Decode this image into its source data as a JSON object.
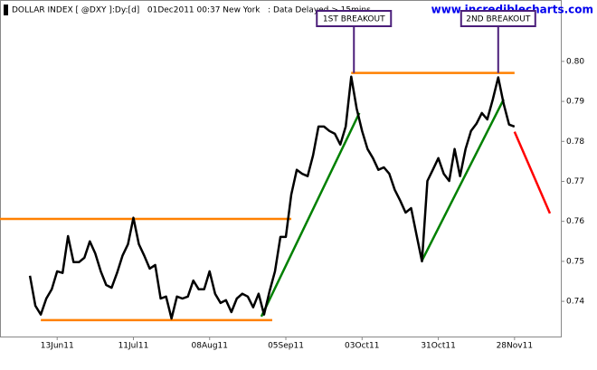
{
  "chart_data": {
    "type": "line",
    "title": "DOLLAR INDEX [ @DXY ]:Dy:[d]   01Dec2011 00:37 New York   : Data Delayed > 15mins",
    "source": "www.incrediblecharts.com",
    "x": [
      "2011-06-03",
      "2011-06-05",
      "2011-06-07",
      "2011-06-09",
      "2011-06-11",
      "2011-06-13",
      "2011-06-15",
      "2011-06-17",
      "2011-06-19",
      "2011-06-21",
      "2011-06-23",
      "2011-06-25",
      "2011-06-27",
      "2011-06-29",
      "2011-07-01",
      "2011-07-03",
      "2011-07-05",
      "2011-07-07",
      "2011-07-09",
      "2011-07-11",
      "2011-07-13",
      "2011-07-15",
      "2011-07-17",
      "2011-07-19",
      "2011-07-21",
      "2011-07-23",
      "2011-07-25",
      "2011-07-27",
      "2011-07-29",
      "2011-07-31",
      "2011-08-02",
      "2011-08-04",
      "2011-08-06",
      "2011-08-08",
      "2011-08-10",
      "2011-08-12",
      "2011-08-14",
      "2011-08-16",
      "2011-08-18",
      "2011-08-20",
      "2011-08-22",
      "2011-08-24",
      "2011-08-26",
      "2011-08-28",
      "2011-08-30",
      "2011-09-01",
      "2011-09-03",
      "2011-09-05",
      "2011-09-07",
      "2011-09-09",
      "2011-09-11",
      "2011-09-13",
      "2011-09-15",
      "2011-09-17",
      "2011-09-19",
      "2011-09-21",
      "2011-09-23",
      "2011-09-25",
      "2011-09-27",
      "2011-09-29",
      "2011-10-01",
      "2011-10-03",
      "2011-10-05",
      "2011-10-07",
      "2011-10-09",
      "2011-10-11",
      "2011-10-13",
      "2011-10-15",
      "2011-10-17",
      "2011-10-19",
      "2011-10-21",
      "2011-10-23",
      "2011-10-25",
      "2011-10-27",
      "2011-10-29",
      "2011-10-31",
      "2011-11-02",
      "2011-11-04",
      "2011-11-06",
      "2011-11-08",
      "2011-11-10",
      "2011-11-12",
      "2011-11-14",
      "2011-11-16",
      "2011-11-18",
      "2011-11-20",
      "2011-11-22",
      "2011-11-24",
      "2011-11-26",
      "2011-11-28"
    ],
    "series": [
      {
        "color": "#000000",
        "values": [
          0.7464,
          0.7389,
          0.7367,
          0.7407,
          0.743,
          0.7475,
          0.7471,
          0.7563,
          0.7498,
          0.7498,
          0.7509,
          0.755,
          0.752,
          0.7475,
          0.7441,
          0.7434,
          0.7471,
          0.7514,
          0.7543,
          0.7609,
          0.7543,
          0.7514,
          0.7482,
          0.7491,
          0.7407,
          0.7412,
          0.7357,
          0.7412,
          0.7407,
          0.7412,
          0.7452,
          0.743,
          0.743,
          0.7475,
          0.7419,
          0.7396,
          0.7403,
          0.7373,
          0.7407,
          0.7419,
          0.7412,
          0.7385,
          0.7419,
          0.7367,
          0.7425,
          0.7475,
          0.7561,
          0.7561,
          0.7667,
          0.7729,
          0.7719,
          0.7713,
          0.7765,
          0.7837,
          0.7837,
          0.7826,
          0.7819,
          0.7792,
          0.7837,
          0.7962,
          0.7882,
          0.7826,
          0.7781,
          0.7758,
          0.7729,
          0.7735,
          0.7719,
          0.7679,
          0.7652,
          0.7622,
          0.7633,
          0.7566,
          0.75,
          0.7701,
          0.7729,
          0.7758,
          0.7719,
          0.7701,
          0.7781,
          0.7713,
          0.7781,
          0.7826,
          0.7844,
          0.7871,
          0.7855,
          0.7905,
          0.796,
          0.7894,
          0.7842,
          0.7837
        ]
      }
    ],
    "lines": [
      {
        "color": "#ff8000",
        "x": [
          "2011-09-29",
          "2011-11-28"
        ],
        "y": [
          0.7971,
          0.7971
        ]
      },
      {
        "color": "#ff8000",
        "x": [
          "2011-06-07",
          "2011-08-31"
        ],
        "y": [
          0.7353,
          0.7353
        ]
      },
      {
        "color": "#ff8000",
        "x": [
          "2011-05-23",
          "2011-09-07"
        ],
        "y": [
          0.7606,
          0.7606
        ]
      },
      {
        "color": "#008000",
        "x": [
          "2011-08-27",
          "2011-10-02"
        ],
        "y": [
          0.7362,
          0.7871
        ]
      },
      {
        "color": "#008000",
        "x": [
          "2011-10-25",
          "2011-11-24"
        ],
        "y": [
          0.7502,
          0.7905
        ]
      },
      {
        "color": "#ff0000",
        "x": [
          "2011-11-28",
          "2011-12-11"
        ],
        "y": [
          0.7824,
          0.762
        ]
      }
    ],
    "callouts": [
      {
        "text": "1ST BREAKOUT",
        "x": "2011-09-30",
        "y": 0.7971
      },
      {
        "text": "2ND BREAKOUT",
        "x": "2011-11-22",
        "y": 0.7971
      }
    ],
    "xlim": [
      "2011-05-23",
      "2011-12-15"
    ],
    "xticks": [
      {
        "value": "2011-06-13",
        "label": "13Jun11"
      },
      {
        "value": "2011-07-11",
        "label": "11Jul11"
      },
      {
        "value": "2011-08-08",
        "label": "08Aug11"
      },
      {
        "value": "2011-09-05",
        "label": "05Sep11"
      },
      {
        "value": "2011-10-03",
        "label": "03Oct11"
      },
      {
        "value": "2011-10-31",
        "label": "31Oct11"
      },
      {
        "value": "2011-11-28",
        "label": "28Nov11"
      }
    ],
    "ylim": [
      0.7312,
      0.8149
    ],
    "yticks": [
      0.74,
      0.75,
      0.76,
      0.77,
      0.78,
      0.79,
      {
        "value": 0.8,
        "label": "0.80"
      }
    ]
  }
}
